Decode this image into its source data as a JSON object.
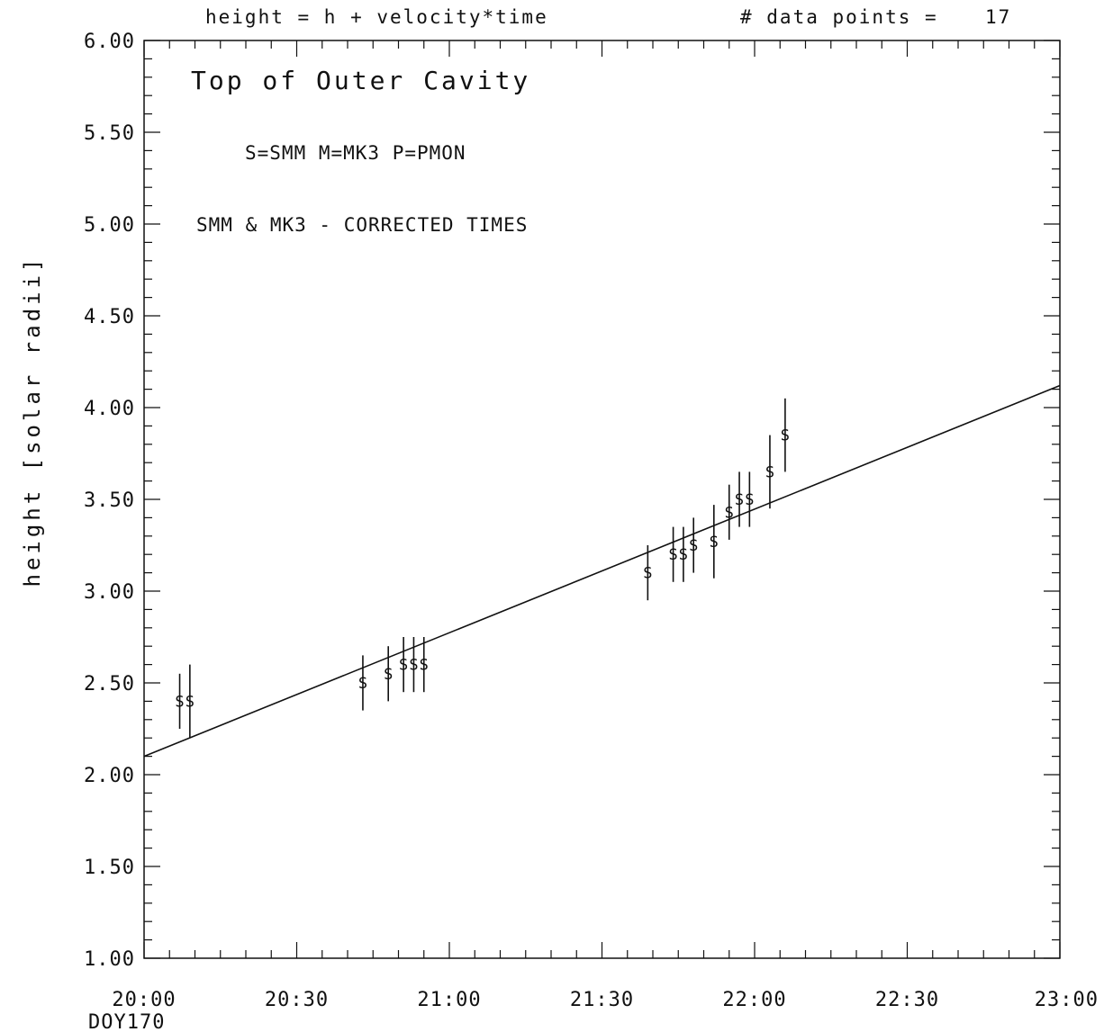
{
  "header": {
    "formula": "height = h + velocity*time",
    "points_label": "# data points =",
    "points_count": "17"
  },
  "annotations": {
    "title": "Top of Outer Cavity",
    "legend": "S=SMM   M=MK3   P=PMON",
    "note": "SMM & MK3 - CORRECTED TIMES"
  },
  "chart_data": {
    "type": "scatter",
    "title": "Top of Outer Cavity",
    "xlabel": "DOY170",
    "ylabel": "height [solar radii]",
    "xlim": [
      "20:00",
      "23:00"
    ],
    "ylim": [
      1.0,
      6.0
    ],
    "x_tick_labels": [
      "20:00",
      "20:30",
      "21:00",
      "21:30",
      "22:00",
      "22:30",
      "23:00"
    ],
    "y_tick_labels": [
      "1.00",
      "1.50",
      "2.00",
      "2.50",
      "3.00",
      "3.50",
      "4.00",
      "4.50",
      "5.00",
      "5.50",
      "6.00"
    ],
    "grid": false,
    "marker": "S",
    "series": [
      {
        "name": "SMM",
        "points": [
          {
            "x": "20:07",
            "y": 2.4,
            "err": [
              2.25,
              2.55
            ]
          },
          {
            "x": "20:09",
            "y": 2.4,
            "err": [
              2.2,
              2.6
            ]
          },
          {
            "x": "20:43",
            "y": 2.5,
            "err": [
              2.35,
              2.65
            ]
          },
          {
            "x": "20:48",
            "y": 2.55,
            "err": [
              2.4,
              2.7
            ]
          },
          {
            "x": "20:51",
            "y": 2.6,
            "err": [
              2.45,
              2.75
            ]
          },
          {
            "x": "20:53",
            "y": 2.6,
            "err": [
              2.45,
              2.75
            ]
          },
          {
            "x": "20:55",
            "y": 2.6,
            "err": [
              2.45,
              2.75
            ]
          },
          {
            "x": "21:39",
            "y": 3.1,
            "err": [
              2.95,
              3.25
            ]
          },
          {
            "x": "21:44",
            "y": 3.2,
            "err": [
              3.05,
              3.35
            ]
          },
          {
            "x": "21:46",
            "y": 3.2,
            "err": [
              3.05,
              3.35
            ]
          },
          {
            "x": "21:48",
            "y": 3.25,
            "err": [
              3.1,
              3.4
            ]
          },
          {
            "x": "21:52",
            "y": 3.27,
            "err": [
              3.07,
              3.47
            ]
          },
          {
            "x": "21:55",
            "y": 3.43,
            "err": [
              3.28,
              3.58
            ]
          },
          {
            "x": "21:57",
            "y": 3.5,
            "err": [
              3.35,
              3.65
            ]
          },
          {
            "x": "21:59",
            "y": 3.5,
            "err": [
              3.35,
              3.65
            ]
          },
          {
            "x": "22:03",
            "y": 3.65,
            "err": [
              3.45,
              3.85
            ]
          },
          {
            "x": "22:06",
            "y": 3.85,
            "err": [
              3.65,
              4.05
            ]
          }
        ]
      }
    ],
    "fit_line": {
      "x": [
        "20:00",
        "23:00"
      ],
      "y": [
        2.1,
        4.12
      ]
    }
  }
}
